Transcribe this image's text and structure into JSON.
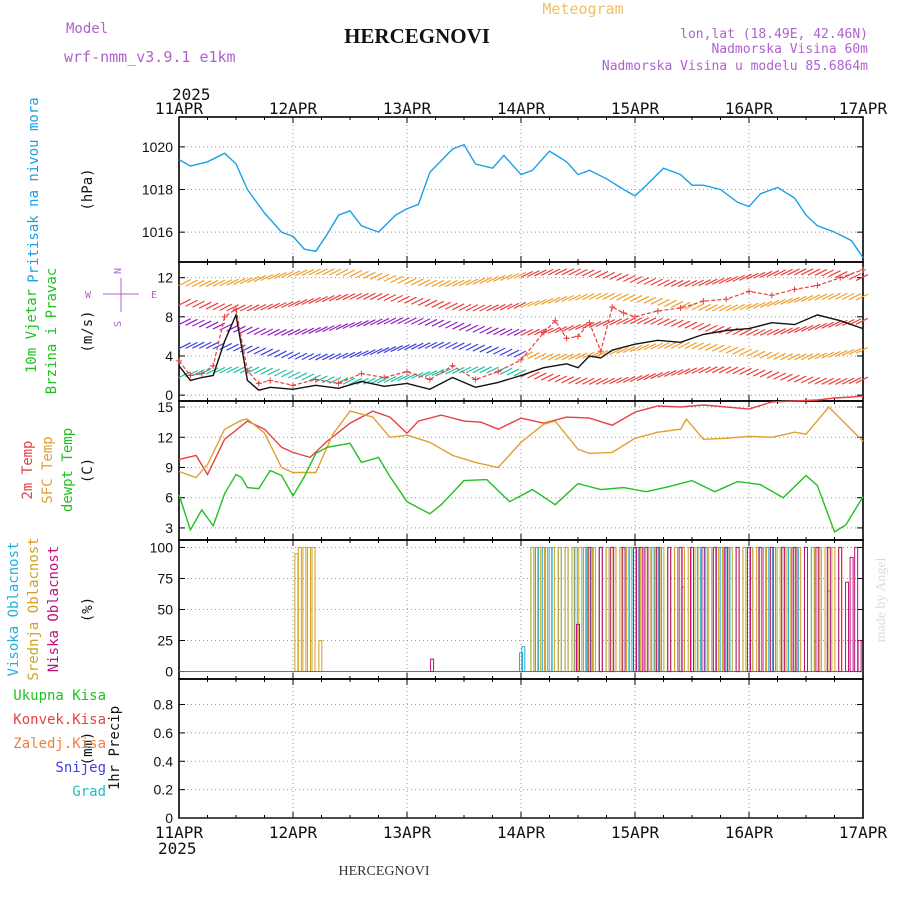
{
  "header": {
    "model_label": "Model",
    "model_name": "wrf-nmm_v3.9.1 e1km",
    "meteogram_label": "Meteogram",
    "station": "HERCEGNOVI",
    "coords": "lon,lat (18.49E, 42.46N)",
    "elevation": "Nadmorska Visina 60m",
    "model_elevation": "Nadmorska Visina u modelu 85.6864m"
  },
  "footer": {
    "station": "HERCEGNOVI",
    "credit": "made by Angel"
  },
  "axis": {
    "year": "2025",
    "dates": [
      "11APR",
      "12APR",
      "13APR",
      "14APR",
      "15APR",
      "16APR",
      "17APR"
    ]
  },
  "compass": {
    "n": "N",
    "s": "S",
    "e": "E",
    "w": "W"
  },
  "colors": {
    "pressure": "#1aa0e6",
    "wind_green": "#22c022",
    "temp": "#e84040",
    "sfc": "#e0a030",
    "dewpt": "#22c022",
    "high_cloud": "#20b0d8",
    "mid_cloud": "#d0a020",
    "low_cloud": "#c0107a",
    "precip_total": "#22c022",
    "precip_conv": "#e84040",
    "precip_frozen": "#f08040",
    "snow": "#4040e0",
    "grad": "#20c0c0",
    "purple": "#b060d0",
    "meteogram": "#f0c060"
  },
  "chart_data": [
    {
      "type": "line",
      "id": "pressure",
      "ylabel": "Pritisak na nivou mora",
      "unit": "(hPa)",
      "ylim": [
        1014.6,
        1021.4
      ],
      "yticks": [
        1016,
        1018,
        1020
      ],
      "grid": true,
      "xrange_days": [
        0,
        6
      ],
      "series": [
        {
          "name": "Pritisak na nivou mora",
          "x": [
            0,
            0.1,
            0.25,
            0.4,
            0.5,
            0.6,
            0.75,
            0.9,
            1.0,
            1.1,
            1.2,
            1.3,
            1.4,
            1.5,
            1.6,
            1.75,
            1.9,
            2.0,
            2.1,
            2.2,
            2.4,
            2.5,
            2.6,
            2.75,
            2.85,
            3.0,
            3.1,
            3.25,
            3.4,
            3.5,
            3.6,
            3.75,
            3.9,
            4.0,
            4.1,
            4.25,
            4.4,
            4.5,
            4.6,
            4.75,
            4.9,
            5.0,
            5.1,
            5.25,
            5.4,
            5.5,
            5.6,
            5.75,
            5.9,
            6.0
          ],
          "y": [
            1019.4,
            1019.1,
            1019.3,
            1019.7,
            1019.2,
            1018.0,
            1016.9,
            1016.0,
            1015.8,
            1015.2,
            1015.1,
            1015.9,
            1016.8,
            1017.0,
            1016.3,
            1016.0,
            1016.8,
            1017.1,
            1017.3,
            1018.8,
            1019.9,
            1020.1,
            1019.2,
            1019.0,
            1019.6,
            1018.7,
            1018.9,
            1019.8,
            1019.3,
            1018.7,
            1018.9,
            1018.5,
            1018.0,
            1017.7,
            1018.2,
            1019.0,
            1018.7,
            1018.2,
            1018.2,
            1018.0,
            1017.4,
            1017.2,
            1017.8,
            1018.1,
            1017.6,
            1016.8,
            1016.3,
            1016.0,
            1015.6,
            1014.8
          ]
        }
      ]
    },
    {
      "type": "line",
      "id": "wind",
      "ylabel": "10m Vjetar Brzina i Pravac",
      "unit": "(m/s)",
      "ylim": [
        -0.6,
        13.6
      ],
      "yticks": [
        0,
        4,
        8,
        12
      ],
      "grid": true,
      "xrange_days": [
        0,
        6
      ],
      "series": [
        {
          "name": "speed",
          "x": [
            0,
            0.1,
            0.2,
            0.3,
            0.4,
            0.5,
            0.6,
            0.7,
            0.8,
            1.0,
            1.2,
            1.4,
            1.6,
            1.8,
            2.0,
            2.2,
            2.4,
            2.6,
            2.8,
            3.0,
            3.2,
            3.4,
            3.5,
            3.6,
            3.7,
            3.8,
            4.0,
            4.2,
            4.4,
            4.6,
            4.8,
            5.0,
            5.2,
            5.4,
            5.6,
            5.8,
            6.0
          ],
          "y": [
            3.0,
            1.5,
            1.8,
            2.0,
            5.5,
            8.2,
            1.5,
            0.5,
            0.8,
            0.6,
            1.0,
            0.7,
            1.4,
            0.9,
            1.2,
            0.6,
            1.8,
            0.8,
            1.3,
            2.0,
            2.8,
            3.2,
            2.8,
            4.0,
            3.8,
            4.6,
            5.2,
            5.6,
            5.4,
            6.2,
            6.6,
            6.8,
            7.4,
            7.2,
            8.2,
            7.6,
            6.8
          ]
        },
        {
          "name": "gust",
          "x": [
            0,
            0.1,
            0.2,
            0.3,
            0.4,
            0.5,
            0.6,
            0.7,
            0.8,
            1.0,
            1.2,
            1.4,
            1.6,
            1.8,
            2.0,
            2.2,
            2.4,
            2.6,
            2.8,
            3.0,
            3.2,
            3.3,
            3.4,
            3.5,
            3.6,
            3.7,
            3.8,
            3.9,
            4.0,
            4.2,
            4.4,
            4.6,
            4.8,
            5.0,
            5.2,
            5.4,
            5.6,
            5.8,
            6.0
          ],
          "y": [
            3.5,
            2.0,
            2.2,
            3.0,
            8.0,
            8.8,
            2.5,
            1.2,
            1.5,
            1.0,
            1.6,
            1.2,
            2.2,
            1.8,
            2.4,
            1.6,
            3.0,
            1.6,
            2.4,
            3.6,
            6.4,
            7.6,
            5.8,
            6.0,
            7.4,
            4.5,
            9.0,
            8.4,
            8.0,
            8.6,
            8.9,
            9.6,
            9.8,
            10.6,
            10.2,
            10.8,
            11.2,
            12.0,
            12.8
          ]
        }
      ]
    },
    {
      "type": "line",
      "id": "temperature",
      "ylabel": "2m Temp / SFC Temp / dewpt Temp",
      "unit": "(C)",
      "ylim": [
        1.8,
        15.6
      ],
      "yticks": [
        3,
        6,
        9,
        12,
        15
      ],
      "grid": true,
      "xrange_days": [
        0,
        6
      ],
      "series": [
        {
          "name": "2m Temp",
          "x": [
            0,
            0.15,
            0.25,
            0.4,
            0.6,
            0.75,
            0.9,
            1.0,
            1.15,
            1.3,
            1.5,
            1.7,
            1.85,
            2.0,
            2.1,
            2.3,
            2.5,
            2.65,
            2.8,
            3.0,
            3.2,
            3.4,
            3.6,
            3.8,
            4.0,
            4.2,
            4.4,
            4.6,
            4.8,
            5.0,
            5.2,
            5.4,
            5.6,
            5.75,
            5.9,
            6.0
          ],
          "y": [
            9.8,
            10.2,
            8.3,
            11.8,
            13.6,
            12.8,
            11.0,
            10.5,
            10.0,
            11.6,
            13.4,
            14.6,
            14.0,
            12.4,
            13.6,
            14.2,
            13.6,
            13.5,
            12.8,
            13.9,
            13.4,
            14.0,
            13.9,
            13.2,
            14.5,
            15.1,
            15.0,
            15.2,
            15.0,
            14.8,
            15.5,
            15.6,
            15.7,
            15.9,
            16.0,
            16.1
          ]
        },
        {
          "name": "SFC Temp",
          "x": [
            0,
            0.15,
            0.25,
            0.4,
            0.55,
            0.6,
            0.75,
            0.9,
            1.0,
            1.2,
            1.35,
            1.5,
            1.7,
            1.85,
            2.0,
            2.2,
            2.4,
            2.6,
            2.8,
            3.0,
            3.2,
            3.3,
            3.5,
            3.6,
            3.8,
            4.0,
            4.2,
            4.4,
            4.45,
            4.6,
            4.8,
            5.0,
            5.2,
            5.4,
            5.5,
            5.7,
            6.0
          ],
          "y": [
            8.6,
            8.0,
            9.3,
            12.8,
            13.7,
            13.8,
            12.4,
            9.0,
            8.5,
            8.5,
            12.3,
            14.6,
            14.0,
            12.0,
            12.2,
            11.5,
            10.2,
            9.5,
            9.0,
            11.5,
            13.3,
            13.6,
            10.8,
            10.4,
            10.5,
            11.9,
            12.5,
            12.8,
            13.8,
            11.8,
            11.9,
            12.1,
            12.0,
            12.5,
            12.3,
            15.0,
            11.6
          ]
        },
        {
          "name": "dewpt Temp",
          "x": [
            0,
            0.1,
            0.2,
            0.3,
            0.4,
            0.5,
            0.55,
            0.6,
            0.7,
            0.8,
            0.9,
            1.0,
            1.1,
            1.2,
            1.3,
            1.5,
            1.6,
            1.75,
            1.85,
            2.0,
            2.1,
            2.2,
            2.3,
            2.5,
            2.7,
            2.9,
            3.1,
            3.3,
            3.5,
            3.7,
            3.9,
            4.1,
            4.3,
            4.5,
            4.7,
            4.9,
            5.1,
            5.3,
            5.5,
            5.6,
            5.75,
            5.85,
            6.0
          ],
          "y": [
            6.3,
            2.8,
            4.8,
            3.2,
            6.4,
            8.3,
            8.0,
            7.0,
            6.9,
            8.7,
            8.2,
            6.2,
            8.1,
            10.4,
            11.0,
            11.4,
            9.5,
            10.0,
            8.1,
            5.6,
            5.0,
            4.4,
            5.3,
            7.7,
            7.8,
            5.6,
            6.8,
            5.3,
            7.4,
            6.8,
            7.0,
            6.6,
            7.1,
            7.7,
            6.6,
            7.6,
            7.3,
            6.0,
            8.2,
            7.2,
            2.6,
            3.3,
            6.1
          ]
        }
      ]
    },
    {
      "type": "bar",
      "id": "cloud",
      "ylabel": "Visoka / Srednja / Niska Oblacnost",
      "unit": "(%)",
      "ylim": [
        -6,
        106
      ],
      "yticks": [
        0,
        25,
        50,
        75,
        100
      ],
      "grid": true,
      "xrange_days": [
        0,
        6
      ],
      "series": [
        {
          "name": "Visoka Oblacnost",
          "x": [
            3.0,
            3.02,
            3.1,
            3.14,
            3.2,
            3.26,
            3.34,
            3.4,
            3.48,
            3.56,
            3.62,
            3.7,
            3.76,
            3.82,
            3.9,
            3.96,
            4.02,
            4.1,
            4.16,
            4.22,
            4.3,
            4.36,
            4.42,
            4.5,
            4.56,
            4.62,
            4.7,
            4.76,
            4.82,
            4.9,
            4.96,
            5.02,
            5.1,
            5.16,
            5.22,
            5.3,
            5.36,
            5.42,
            5.5,
            5.56,
            5.62,
            5.7
          ],
          "y": [
            15,
            20,
            100,
            100,
            100,
            100,
            100,
            100,
            100,
            100,
            100,
            100,
            100,
            100,
            100,
            100,
            100,
            100,
            100,
            100,
            100,
            100,
            68,
            100,
            100,
            100,
            100,
            100,
            100,
            100,
            100,
            100,
            100,
            100,
            100,
            100,
            100,
            100,
            100,
            100,
            100,
            65
          ]
        },
        {
          "name": "Srednja Oblacnost",
          "x": [
            1.03,
            1.06,
            1.1,
            1.14,
            1.18,
            1.24,
            2.2,
            2.28,
            2.32,
            2.36,
            2.4,
            2.46,
            2.52,
            2.56,
            2.6,
            2.66,
            2.72,
            2.78,
            2.84,
            2.9,
            2.96,
            3.04,
            3.1,
            3.16,
            3.22,
            3.28,
            3.34,
            3.4,
            3.46,
            3.52,
            3.58,
            3.64,
            3.7,
            3.76,
            3.82,
            3.88,
            3.94,
            4.0,
            4.06,
            4.12,
            4.18,
            4.24,
            4.3,
            4.36,
            4.42,
            4.48,
            4.54,
            4.6,
            4.66,
            4.72,
            4.78,
            4.84,
            4.9,
            4.96,
            5.02,
            5.08,
            5.14,
            5.2,
            5.26,
            5.32,
            5.38,
            5.44,
            5.5,
            5.56,
            5.62,
            5.68,
            5.74,
            5.8
          ],
          "y": [
            95,
            100,
            100,
            100,
            100,
            25,
            0,
            0,
            0,
            0,
            0,
            0,
            0,
            0,
            0,
            0,
            0,
            0,
            0,
            0,
            0,
            0,
            100,
            100,
            100,
            100,
            100,
            100,
            100,
            100,
            100,
            100,
            100,
            100,
            100,
            100,
            100,
            100,
            100,
            100,
            100,
            100,
            100,
            100,
            100,
            100,
            100,
            100,
            100,
            100,
            100,
            100,
            100,
            100,
            100,
            100,
            100,
            100,
            100,
            100,
            100,
            100,
            100,
            100,
            100,
            100,
            100,
            100
          ]
        },
        {
          "name": "Niska Oblacnost",
          "x": [
            2.22,
            3.5,
            3.6,
            3.7,
            3.8,
            3.9,
            4.0,
            4.05,
            4.1,
            4.2,
            4.3,
            4.4,
            4.5,
            4.6,
            4.7,
            4.8,
            4.9,
            5.0,
            5.1,
            5.2,
            5.3,
            5.4,
            5.5,
            5.6,
            5.7,
            5.8,
            5.86,
            5.9,
            5.94,
            5.97,
            6.0
          ],
          "y": [
            10,
            38,
            100,
            100,
            100,
            100,
            100,
            100,
            100,
            100,
            100,
            100,
            100,
            100,
            100,
            100,
            100,
            100,
            100,
            100,
            100,
            100,
            100,
            100,
            100,
            100,
            72,
            92,
            100,
            25,
            0
          ]
        }
      ]
    },
    {
      "type": "bar",
      "id": "precip",
      "ylabel": "1hr Precip",
      "unit": "(mm)",
      "ylim": [
        0,
        0.98
      ],
      "yticks": [
        0,
        0.2,
        0.4,
        0.6,
        0.8
      ],
      "ytick_labels": [
        "0",
        "0.2",
        "0.4",
        "0.6",
        "0.8"
      ],
      "grid": true,
      "xrange_days": [
        0,
        6
      ],
      "series": [
        {
          "name": "Ukupna Kisa",
          "x": [],
          "y": []
        },
        {
          "name": "Konvek.Kisa",
          "x": [],
          "y": []
        },
        {
          "name": "Zaledj.Kisa",
          "x": [],
          "y": []
        },
        {
          "name": "Snijeg",
          "x": [],
          "y": []
        },
        {
          "name": "Grad",
          "x": [],
          "y": []
        }
      ]
    }
  ],
  "labels": {
    "pressure": [
      {
        "text": "Pritisak na nivou mora",
        "color": "#1aa0e6"
      }
    ],
    "wind": [
      {
        "text": "10m Vjetar",
        "color": "#22c022"
      },
      {
        "text": "Brzina i Pravac",
        "color": "#22c022"
      }
    ],
    "temp": [
      {
        "text": "2m Temp",
        "color": "#e84040"
      },
      {
        "text": "SFC Temp",
        "color": "#e0a030"
      },
      {
        "text": "dewpt Temp",
        "color": "#22c022"
      }
    ],
    "cloud": [
      {
        "text": "Visoka Oblacnost",
        "color": "#20b0d8"
      },
      {
        "text": "Srednja Oblacnost",
        "color": "#d0a020"
      },
      {
        "text": "Niska Oblacnost",
        "color": "#c0107a"
      }
    ],
    "precip": [
      {
        "text": "Ukupna Kisa",
        "color": "#22c022"
      },
      {
        "text": "Konvek.Kisa",
        "color": "#e84040"
      },
      {
        "text": "Zaledj.Kisa",
        "color": "#f08040"
      },
      {
        "text": "Snijeg",
        "color": "#4040e0"
      },
      {
        "text": "Grad",
        "color": "#20c0c0"
      }
    ]
  }
}
